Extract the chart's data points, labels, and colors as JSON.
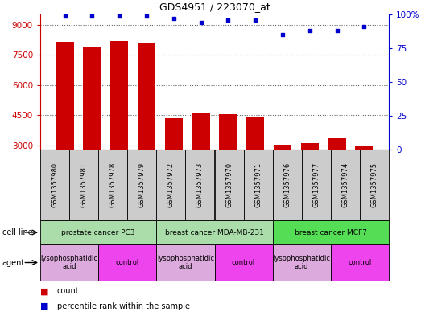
{
  "title": "GDS4951 / 223070_at",
  "samples": [
    "GSM1357980",
    "GSM1357981",
    "GSM1357978",
    "GSM1357979",
    "GSM1357972",
    "GSM1357973",
    "GSM1357970",
    "GSM1357971",
    "GSM1357976",
    "GSM1357977",
    "GSM1357974",
    "GSM1357975"
  ],
  "counts": [
    8150,
    7900,
    8200,
    8100,
    4350,
    4650,
    4550,
    4450,
    3050,
    3100,
    3350,
    3000
  ],
  "percentile_ranks": [
    99,
    99,
    99,
    99,
    97,
    94,
    96,
    96,
    85,
    88,
    88,
    91
  ],
  "bar_color": "#cc0000",
  "dot_color": "#0000cc",
  "ylim_left": [
    2800,
    9500
  ],
  "ylim_right": [
    0,
    100
  ],
  "yticks_left": [
    3000,
    4500,
    6000,
    7500,
    9000
  ],
  "yticks_right": [
    0,
    25,
    50,
    75,
    100
  ],
  "cell_lines": [
    {
      "label": "prostate cancer PC3",
      "start": 0,
      "end": 4,
      "color": "#aaddaa"
    },
    {
      "label": "breast cancer MDA-MB-231",
      "start": 4,
      "end": 8,
      "color": "#aaddaa"
    },
    {
      "label": "breast cancer MCF7",
      "start": 8,
      "end": 12,
      "color": "#55dd55"
    }
  ],
  "agents": [
    {
      "label": "lysophosphatidic\nacid",
      "start": 0,
      "end": 2,
      "color": "#ddaadd"
    },
    {
      "label": "control",
      "start": 2,
      "end": 4,
      "color": "#ee44ee"
    },
    {
      "label": "lysophosphatidic\nacid",
      "start": 4,
      "end": 6,
      "color": "#ddaadd"
    },
    {
      "label": "control",
      "start": 6,
      "end": 8,
      "color": "#ee44ee"
    },
    {
      "label": "lysophosphatidic\nacid",
      "start": 8,
      "end": 10,
      "color": "#ddaadd"
    },
    {
      "label": "control",
      "start": 10,
      "end": 12,
      "color": "#ee44ee"
    }
  ],
  "legend_count_color": "#cc0000",
  "legend_dot_color": "#0000cc",
  "grid_color": "#666666",
  "tick_color_left": "#cc0000",
  "tick_color_right": "#0000cc",
  "sample_box_color": "#cccccc",
  "bg_color": "#ffffff"
}
